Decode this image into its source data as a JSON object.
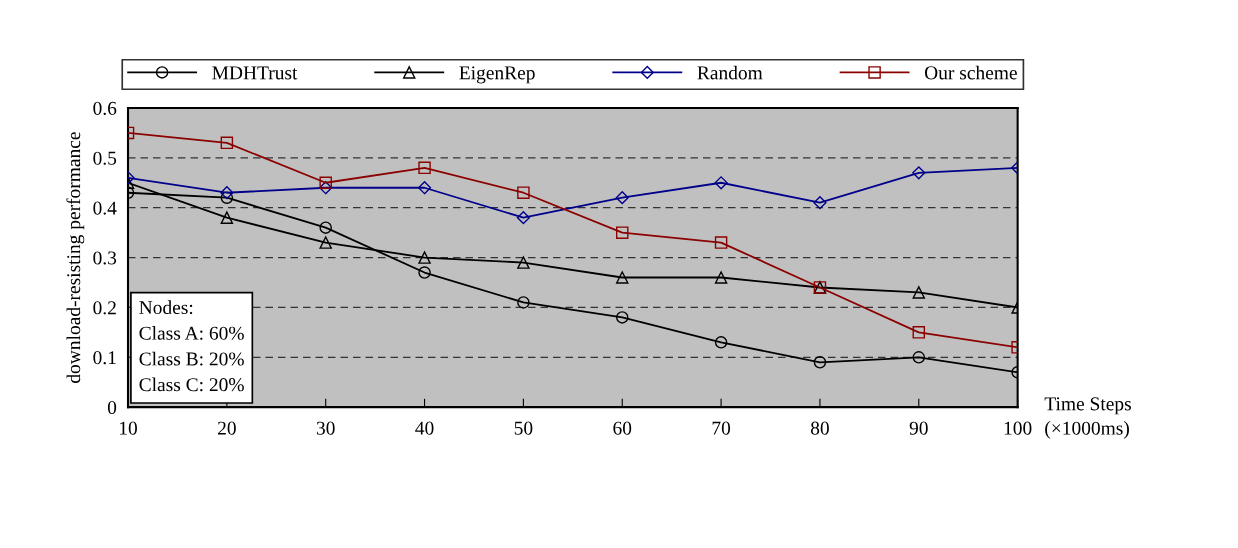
{
  "chart_data": {
    "type": "line",
    "ylabel": "download-resisting performance",
    "xlabel": "Time Steps\n(×1000ms)",
    "x": [
      10,
      20,
      30,
      40,
      50,
      60,
      70,
      80,
      90,
      100
    ],
    "series": [
      {
        "name": "MDHTrust",
        "color": "#000000",
        "marker": "circle",
        "values": [
          0.43,
          0.42,
          0.36,
          0.27,
          0.21,
          0.18,
          0.13,
          0.09,
          0.1,
          0.07
        ]
      },
      {
        "name": "EigenRep",
        "color": "#000000",
        "marker": "triangle",
        "values": [
          0.45,
          0.38,
          0.33,
          0.3,
          0.29,
          0.26,
          0.26,
          0.24,
          0.23,
          0.2
        ]
      },
      {
        "name": "Random",
        "color": "#00008b",
        "marker": "diamond",
        "values": [
          0.46,
          0.43,
          0.44,
          0.44,
          0.38,
          0.42,
          0.45,
          0.41,
          0.47,
          0.48
        ]
      },
      {
        "name": "Our scheme",
        "color": "#8b0000",
        "marker": "square",
        "values": [
          0.55,
          0.53,
          0.45,
          0.48,
          0.43,
          0.35,
          0.33,
          0.24,
          0.15,
          0.12
        ]
      }
    ],
    "xlim": [
      10,
      100
    ],
    "ylim": [
      0,
      0.6
    ],
    "xticks": [
      10,
      20,
      30,
      40,
      50,
      60,
      70,
      80,
      90,
      100
    ],
    "yticks": [
      0,
      0.1,
      0.2,
      0.3,
      0.4,
      0.5,
      0.6
    ],
    "grid": "y",
    "legend": "top",
    "line_style": "solid",
    "annotations": [
      "Nodes:\nClass A: 60%\nClass B: 20%\nClass C: 20%"
    ]
  }
}
